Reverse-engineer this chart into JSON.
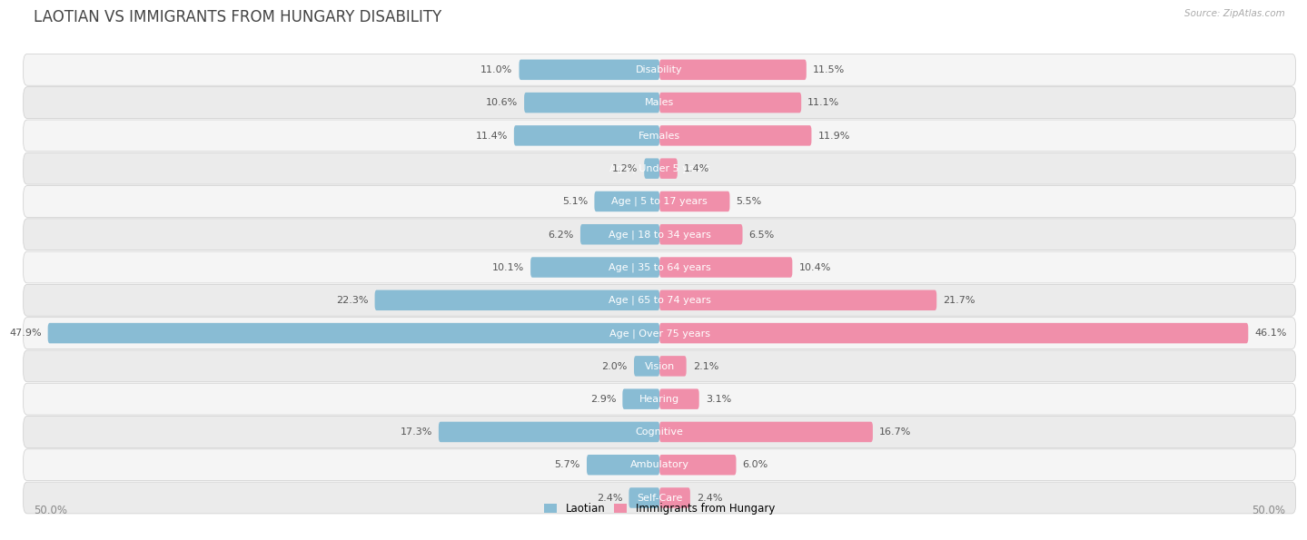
{
  "title": "LAOTIAN VS IMMIGRANTS FROM HUNGARY DISABILITY",
  "source": "Source: ZipAtlas.com",
  "categories": [
    "Disability",
    "Males",
    "Females",
    "Age | Under 5 years",
    "Age | 5 to 17 years",
    "Age | 18 to 34 years",
    "Age | 35 to 64 years",
    "Age | 65 to 74 years",
    "Age | Over 75 years",
    "Vision",
    "Hearing",
    "Cognitive",
    "Ambulatory",
    "Self-Care"
  ],
  "laotian": [
    11.0,
    10.6,
    11.4,
    1.2,
    5.1,
    6.2,
    10.1,
    22.3,
    47.9,
    2.0,
    2.9,
    17.3,
    5.7,
    2.4
  ],
  "hungary": [
    11.5,
    11.1,
    11.9,
    1.4,
    5.5,
    6.5,
    10.4,
    21.7,
    46.1,
    2.1,
    3.1,
    16.7,
    6.0,
    2.4
  ],
  "max_val": 50.0,
  "laotian_color": "#89bcd4",
  "hungary_color": "#f08faa",
  "row_bg_even": "#f2f2f2",
  "row_bg_odd": "#e8e8e8",
  "row_border": "#d0d0d0",
  "label_fontsize": 8.0,
  "value_fontsize": 8.0,
  "title_fontsize": 12,
  "legend_laotian": "Laotian",
  "legend_hungary": "Immigrants from Hungary",
  "title_color": "#444444",
  "value_color": "#555555",
  "label_color": "#555555"
}
